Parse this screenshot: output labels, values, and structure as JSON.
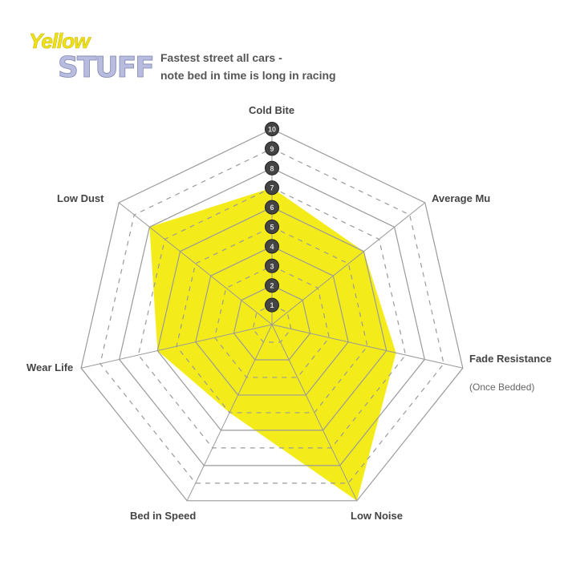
{
  "logo": {
    "line1": "Yellow",
    "line2": "STUFF"
  },
  "subtitle": [
    "Fastest street all cars -",
    "note bed in time is long in racing"
  ],
  "chart_data": {
    "type": "radar",
    "axes": [
      "Cold Bite",
      "Average Mu",
      "Fade Resistance",
      "Low Noise",
      "Bed in Speed",
      "Wear Life",
      "Low Dust"
    ],
    "axis_note": {
      "Fade Resistance": "(Once Bedded)"
    },
    "values": [
      7,
      6,
      6.5,
      10,
      5,
      6,
      8
    ],
    "range": [
      0,
      10
    ],
    "tick_labels": [
      "1",
      "2",
      "3",
      "4",
      "5",
      "6",
      "7",
      "8",
      "9",
      "10"
    ],
    "fill_color": "#f4ec1a",
    "grid_color": "#9a9a9a"
  }
}
